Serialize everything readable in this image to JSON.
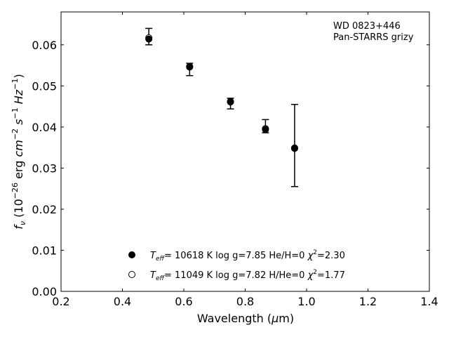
{
  "chart_data": {
    "type": "scatter",
    "title": "",
    "annotation": {
      "line1": "WD 0823+446",
      "line2": "Pan-STARRS grizy"
    },
    "xlabel": {
      "pre": "Wavelength (",
      "mu": "μ",
      "post": "m)"
    },
    "ylabel": {
      "f": "f",
      "nu": "ν",
      "pre": " (10",
      "exp1": "−26",
      "mid": " erg ",
      "cm": "cm",
      "exp2": "−2",
      "s": "s",
      "exp3": "−1",
      "hz": "Hz",
      "exp4": "−1",
      "post": ")"
    },
    "xlim": [
      0.2,
      1.4
    ],
    "ylim": [
      0.0,
      0.068
    ],
    "xticks": [
      "0.2",
      "0.4",
      "0.6",
      "0.8",
      "1.0",
      "1.2",
      "1.4"
    ],
    "yticks": [
      "0.00",
      "0.01",
      "0.02",
      "0.03",
      "0.04",
      "0.05",
      "0.06"
    ],
    "observed": {
      "x": [
        0.486,
        0.619,
        0.752,
        0.866,
        0.961
      ],
      "y": [
        0.062,
        0.054,
        0.0457,
        0.0402,
        0.0355
      ],
      "yerr": [
        0.002,
        0.0015,
        0.0013,
        0.0016,
        0.01
      ]
    },
    "series": [
      {
        "name": "T_eff= 10618 K  log g=7.85  He/H=0  χ²=2.30",
        "marker": "filled",
        "x": [
          0.486,
          0.619,
          0.752,
          0.866,
          0.961
        ],
        "y": [
          0.0614,
          0.0546,
          0.0461,
          0.0394,
          0.0348
        ]
      },
      {
        "name": "T_eff= 11049 K  log g=7.82  H/He=0  χ²=1.77",
        "marker": "open",
        "x": [
          0.486,
          0.619,
          0.752,
          0.866,
          0.961
        ],
        "y": [
          0.0617,
          0.0547,
          0.0462,
          0.0396,
          0.0349
        ]
      }
    ],
    "legend": [
      {
        "marker": "filled",
        "T": "T",
        "eff": "eff",
        "rest": "= 10618 K  log g=7.85  He/H=0  ",
        "chi": "χ",
        "two": "2",
        "val": "=2.30"
      },
      {
        "marker": "open",
        "T": "T",
        "eff": "eff",
        "rest": "= 11049 K  log g=7.82  H/He=0  ",
        "chi": "χ",
        "two": "2",
        "val": "=1.77"
      }
    ],
    "legend_position": "lower-center",
    "grid": false
  }
}
